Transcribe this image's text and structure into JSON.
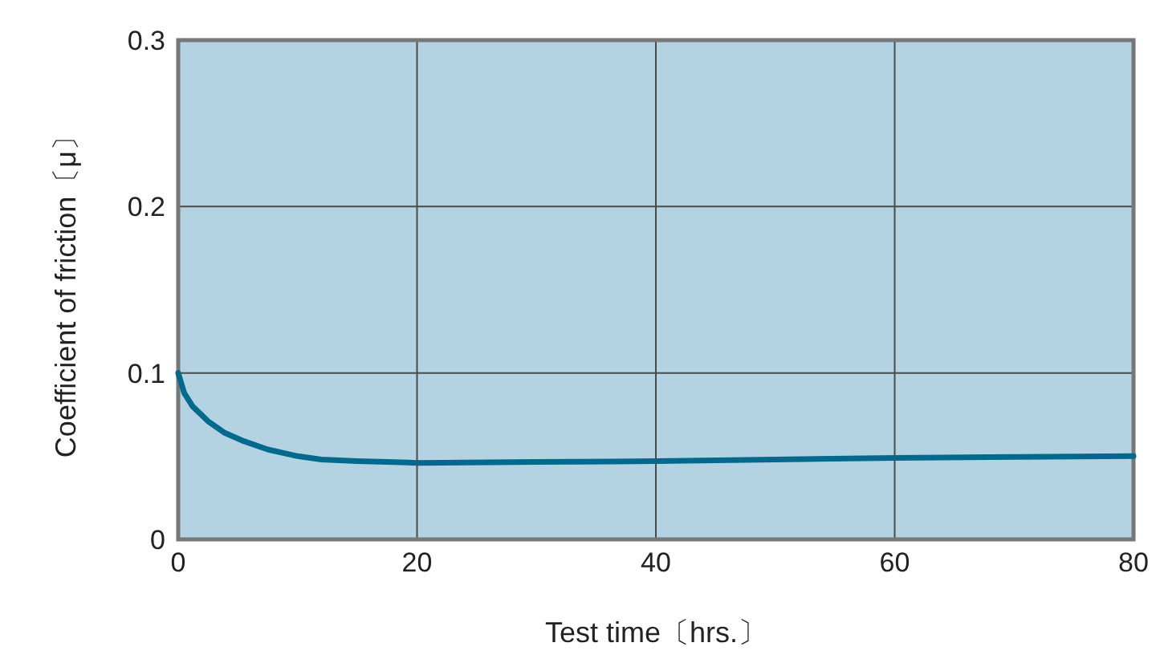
{
  "chart_data": {
    "type": "line",
    "xlabel": "Test time〔hrs.〕",
    "ylabel": "Coefficient of friction〔μ〕",
    "xlim": [
      0,
      80
    ],
    "ylim": [
      0,
      0.3
    ],
    "xticks": [
      0,
      20,
      40,
      60,
      80
    ],
    "yticks": [
      0,
      0.1,
      0.2,
      0.3
    ],
    "grid": true,
    "marker": "none",
    "line_style": "solid",
    "series": [
      {
        "color": "#006a8e",
        "x": [
          0,
          0.5,
          1.2,
          2.5,
          3.9,
          5.5,
          7.5,
          10,
          12,
          15,
          20,
          30,
          40,
          50,
          60,
          70,
          80
        ],
        "values": [
          0.1,
          0.088,
          0.08,
          0.071,
          0.064,
          0.059,
          0.054,
          0.05,
          0.048,
          0.047,
          0.046,
          0.0465,
          0.047,
          0.048,
          0.049,
          0.0495,
          0.05
        ]
      }
    ]
  }
}
